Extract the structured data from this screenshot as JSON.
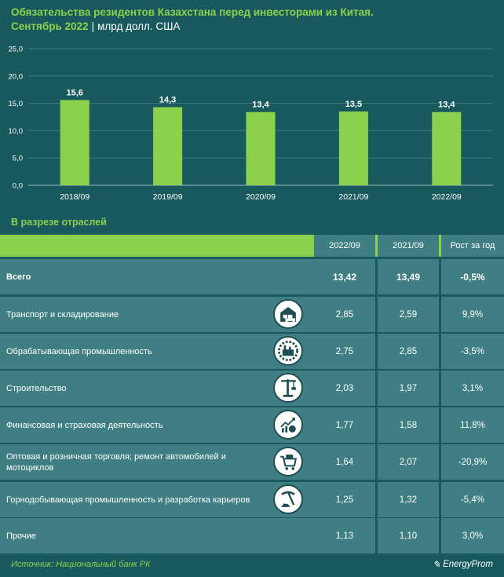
{
  "header": {
    "title": "Обязательства резидентов Казахстана перед инвесторами из Китая.",
    "period": "Сентябрь 2022",
    "separator": "|",
    "unit": "млрд долл. США"
  },
  "chart_data": {
    "type": "bar",
    "categories": [
      "2018/09",
      "2019/09",
      "2020/09",
      "2021/09",
      "2022/09"
    ],
    "values": [
      15.6,
      14.3,
      13.4,
      13.5,
      13.4
    ],
    "value_labels": [
      "15,6",
      "14,3",
      "13,4",
      "13,5",
      "13,4"
    ],
    "y_ticks": [
      "0,0",
      "5,0",
      "10,0",
      "15,0",
      "20,0",
      "25,0"
    ],
    "ylim": [
      0,
      25
    ],
    "grid": true,
    "bar_color": "#8cd14e"
  },
  "table": {
    "section_title": "В разрезе отраслей",
    "columns": [
      "2022/09",
      "2021/09",
      "Рост за год"
    ],
    "rows": [
      {
        "name": "Всего",
        "v2022": "13,42",
        "v2021": "13,49",
        "growth": "-0,5%",
        "icon": null,
        "bold": true
      },
      {
        "name": "Транспорт и складирование",
        "v2022": "2,85",
        "v2021": "2,59",
        "growth": "9,9%",
        "icon": "warehouse-truck-icon"
      },
      {
        "name": "Обрабатывающая промышленность",
        "v2022": "2,75",
        "v2021": "2,85",
        "growth": "-3,5%",
        "icon": "factory-gear-icon"
      },
      {
        "name": "Строительство",
        "v2022": "2,03",
        "v2021": "1,97",
        "growth": "3,1%",
        "icon": "crane-icon"
      },
      {
        "name": "Финансовая и страховая деятельность",
        "v2022": "1,77",
        "v2021": "1,58",
        "growth": "11,8%",
        "icon": "finance-chart-icon"
      },
      {
        "name": "Оптовая и розничная торговля; ремонт автомобилей и мотоциклов",
        "v2022": "1,64",
        "v2021": "2,07",
        "growth": "-20,9%",
        "icon": "shopping-cart-icon"
      },
      {
        "name": "Горнодобывающая промышленность и разработка карьеров",
        "v2022": "1,25",
        "v2021": "1,32",
        "growth": "-5,4%",
        "icon": "pickaxe-icon"
      },
      {
        "name": "Прочие",
        "v2022": "1,13",
        "v2021": "1,10",
        "growth": "3,0%",
        "icon": null
      }
    ]
  },
  "footer": {
    "source": "Источник: Национальный банк РК",
    "logo": "EnergyProm",
    "logo_mark": "✎"
  }
}
